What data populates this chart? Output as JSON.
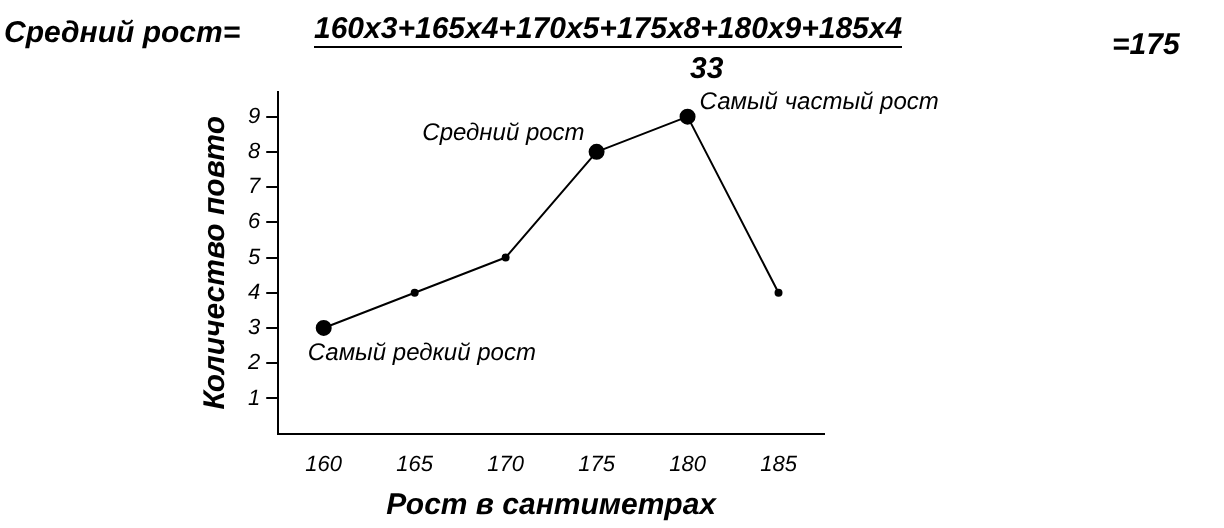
{
  "chart_data": {
    "type": "line",
    "xlabel": "Рост в сантиметрах",
    "ylabel": "Количество повто",
    "categories": [
      "160",
      "165",
      "170",
      "175",
      "180",
      "185"
    ],
    "series": [
      {
        "color": "#000000",
        "values": [
          3,
          4,
          5,
          8,
          9,
          4
        ]
      }
    ],
    "ylim": [
      0,
      9.7
    ],
    "yticks": [
      1,
      2,
      3,
      4,
      5,
      6,
      7,
      8,
      9
    ],
    "grid": false,
    "legend": false,
    "marker": "circle",
    "line_style": "solid",
    "annotations": [
      "Средний рост=",
      "160x3+165x4+170x5+175x8+180x9+185x4",
      "33",
      "=175",
      {
        "text": "Самый редкий рост",
        "x": "160",
        "y": 3
      },
      {
        "text": "Средний рост",
        "x": "175",
        "y": 8
      },
      {
        "text": "Самый частый рост",
        "x": "180",
        "y": 9
      }
    ]
  }
}
